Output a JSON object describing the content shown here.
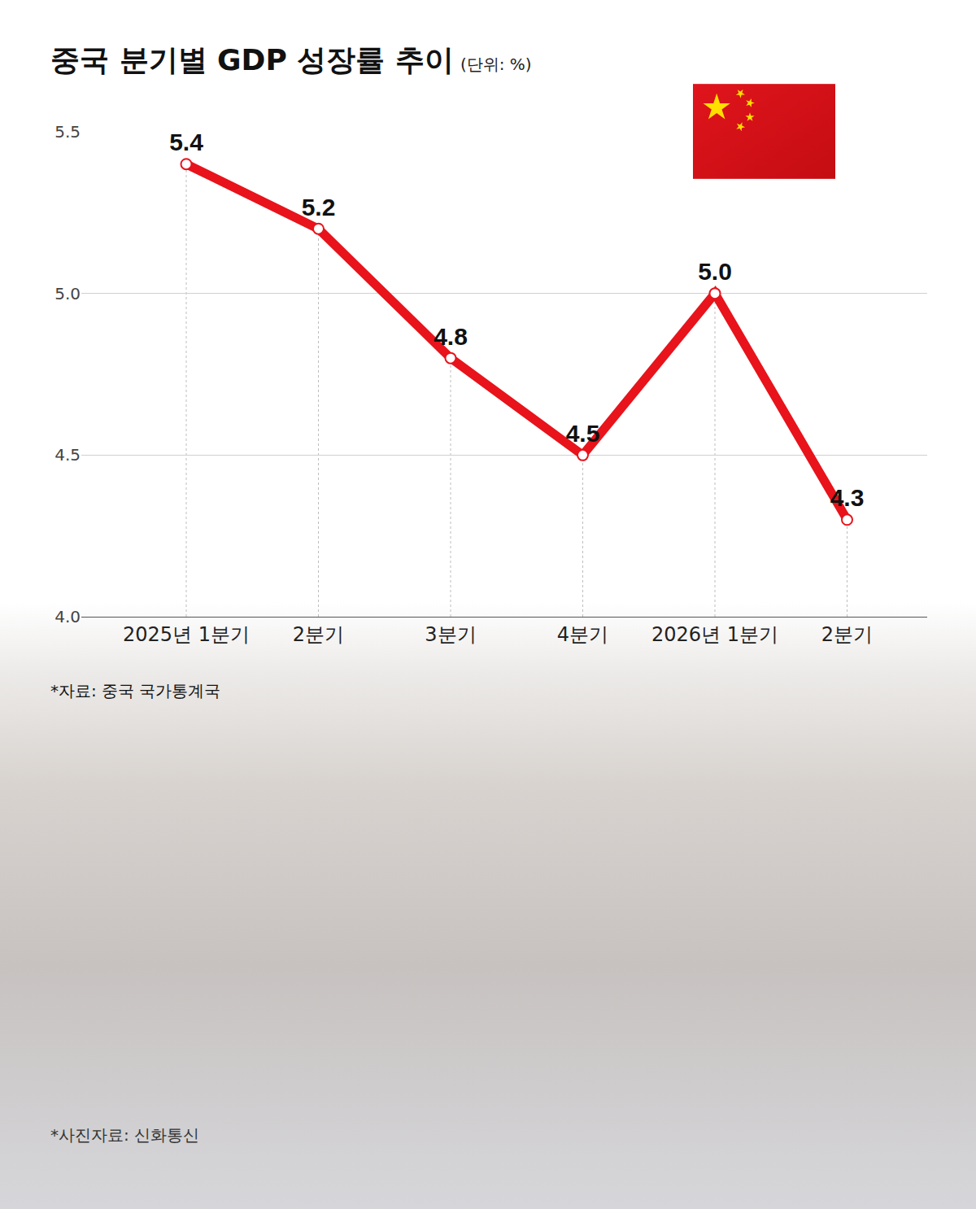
{
  "chart_data": {
    "type": "line",
    "title": "중국 분기별 GDP 성장률 추이",
    "subtitle": "(단위: %)",
    "annotations": [
      "*자료: 중국 국가통계국",
      "*사진자료: 신화통신"
    ],
    "categories": [
      "2025년 1분기",
      "2분기",
      "3분기",
      "4분기",
      "2026년 1분기",
      "2분기"
    ],
    "values": [
      5.4,
      5.2,
      4.8,
      4.5,
      5.0,
      4.3
    ],
    "value_labels": [
      "5.4",
      "5.2",
      "4.8",
      "4.5",
      "5.0",
      "4.3"
    ],
    "color": "#e8131b",
    "marker": "circle",
    "ylim": [
      4.0,
      5.5
    ],
    "yticks": [
      {
        "value": 4.0,
        "label": "4.0"
      },
      {
        "value": 4.5,
        "label": "4.5"
      },
      {
        "value": 5.0,
        "label": "5.0"
      },
      {
        "value": 5.5,
        "label": "5.5"
      }
    ],
    "grid": true,
    "data_labels": true
  }
}
